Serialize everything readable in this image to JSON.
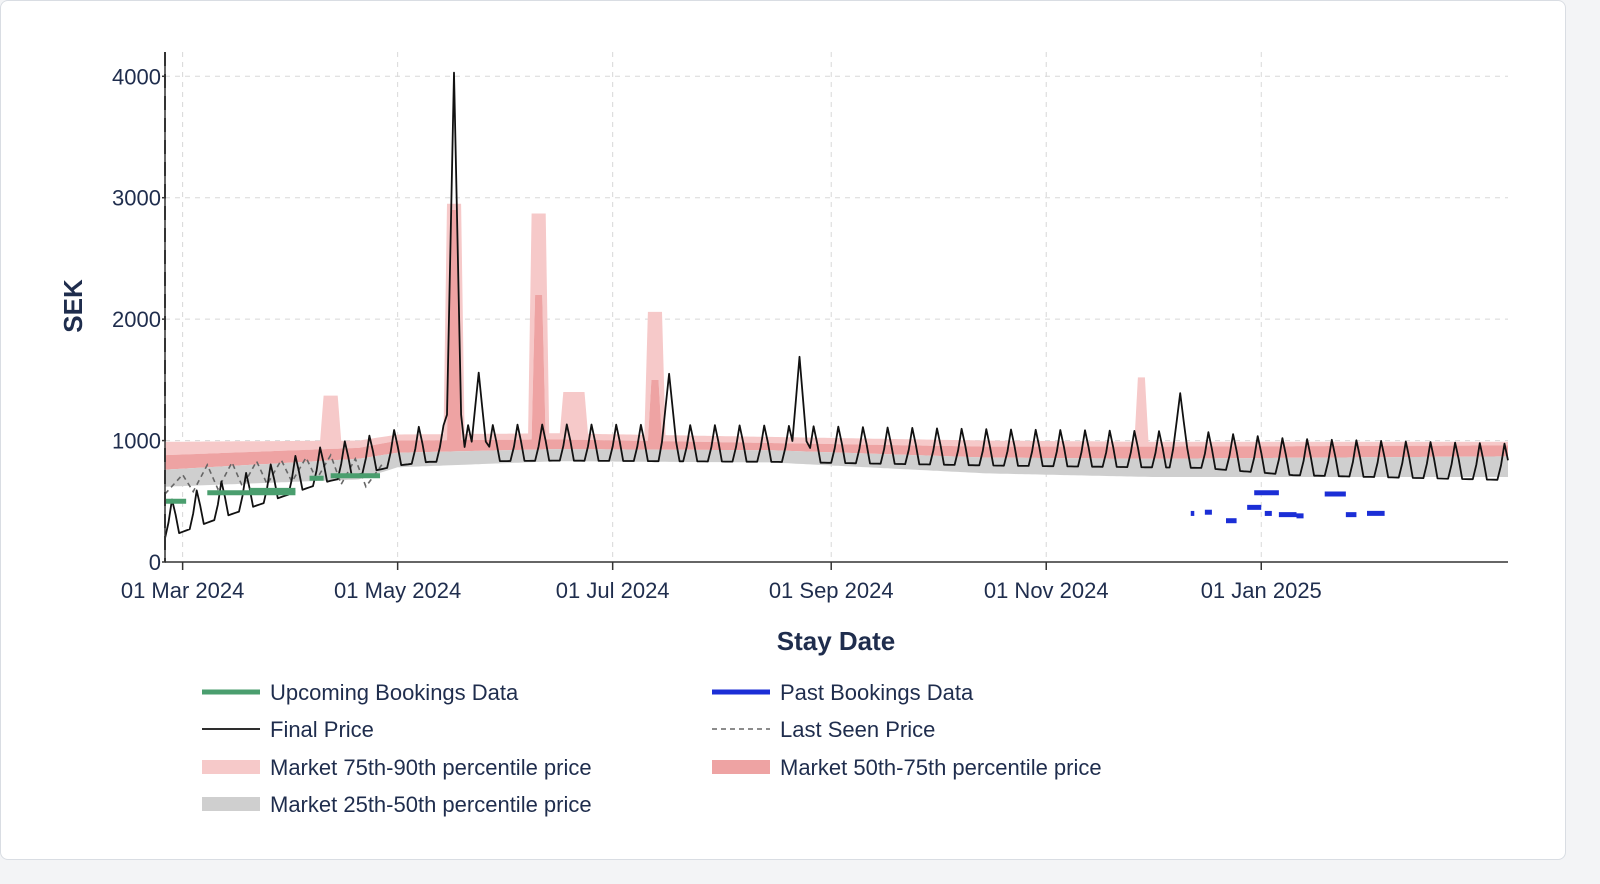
{
  "chart_data": {
    "type": "line",
    "xlabel": "Stay Date",
    "ylabel": "SEK",
    "xlim": [
      "2024-02-25",
      "2025-03-12"
    ],
    "ylim": [
      0,
      4200
    ],
    "grid": true,
    "legend_position": "bottom",
    "x_ticks": [
      {
        "date": "2024-03-01",
        "label": "01 Mar 2024"
      },
      {
        "date": "2024-05-01",
        "label": "01 May 2024"
      },
      {
        "date": "2024-07-01",
        "label": "01 Jul 2024"
      },
      {
        "date": "2024-09-01",
        "label": "01 Sep 2024"
      },
      {
        "date": "2024-11-01",
        "label": "01 Nov 2024"
      },
      {
        "date": "2025-01-01",
        "label": "01 Jan 2025"
      }
    ],
    "y_ticks": [
      0,
      1000,
      2000,
      3000,
      4000
    ],
    "colors": {
      "upcoming": "#4a9e6e",
      "past": "#1b2ed6",
      "final": "#111111",
      "last_seen": "#666666",
      "p75_90": "#f6c9c9",
      "p50_75": "#eea3a3",
      "p25_50": "#cfcfcf",
      "axis_text": "#1f2d4d"
    },
    "legend": [
      {
        "key": "upcoming",
        "label": "Upcoming Bookings Data",
        "style": "thick-line"
      },
      {
        "key": "past",
        "label": "Past Bookings Data",
        "style": "thick-line"
      },
      {
        "key": "final",
        "label": "Final Price",
        "style": "line"
      },
      {
        "key": "last_seen",
        "label": "Last Seen Price",
        "style": "dashed"
      },
      {
        "key": "p75_90",
        "label": "Market 75th-90th percentile price",
        "style": "patch"
      },
      {
        "key": "p50_75",
        "label": "Market 50th-75th percentile price",
        "style": "patch"
      },
      {
        "key": "p25_50",
        "label": "Market 25th-50th percentile price",
        "style": "patch"
      }
    ],
    "final_price": {
      "keypoints": [
        [
          "2024-02-25",
          300
        ],
        [
          "2024-03-10",
          450
        ],
        [
          "2024-03-25",
          600
        ],
        [
          "2024-04-10",
          760
        ],
        [
          "2024-04-25",
          860
        ],
        [
          "2024-05-01",
          900
        ],
        [
          "2024-05-10",
          930
        ],
        [
          "2024-06-15",
          940
        ],
        [
          "2024-08-15",
          930
        ],
        [
          "2024-10-15",
          900
        ],
        [
          "2024-12-15",
          880
        ],
        [
          "2025-01-10",
          820
        ],
        [
          "2025-03-12",
          780
        ]
      ],
      "weekly_amplitude": 300,
      "spikes": [
        {
          "date": "2024-05-17",
          "value": 4030
        },
        {
          "date": "2024-08-23",
          "value": 1690
        },
        {
          "date": "2024-12-09",
          "value": 1390
        },
        {
          "date": "2024-07-17",
          "value": 1550
        },
        {
          "date": "2024-05-24",
          "value": 1560
        }
      ]
    },
    "market_p25": [
      [
        "2024-02-25",
        620
      ],
      [
        "2024-04-20",
        680
      ],
      [
        "2024-05-01",
        780
      ],
      [
        "2024-06-15",
        830
      ],
      [
        "2024-08-15",
        820
      ],
      [
        "2024-10-15",
        730
      ],
      [
        "2024-12-01",
        700
      ],
      [
        "2025-03-12",
        700
      ]
    ],
    "market_p50": [
      [
        "2024-02-25",
        760
      ],
      [
        "2024-04-20",
        850
      ],
      [
        "2024-05-01",
        900
      ],
      [
        "2024-06-15",
        930
      ],
      [
        "2024-08-15",
        920
      ],
      [
        "2024-10-15",
        860
      ],
      [
        "2024-12-01",
        850
      ],
      [
        "2025-03-12",
        870
      ]
    ],
    "market_p75": [
      [
        "2024-02-25",
        880
      ],
      [
        "2024-04-20",
        940
      ],
      [
        "2024-05-01",
        1000
      ],
      [
        "2024-06-15",
        1010
      ],
      [
        "2024-08-15",
        980
      ],
      [
        "2024-10-15",
        950
      ],
      [
        "2024-12-01",
        950
      ],
      [
        "2025-03-12",
        960
      ]
    ],
    "market_p90": [
      [
        "2024-02-25",
        990
      ],
      [
        "2024-04-20",
        1000
      ],
      [
        "2024-05-01",
        1050
      ],
      [
        "2024-06-15",
        1060
      ],
      [
        "2024-08-15",
        1030
      ],
      [
        "2024-10-15",
        1000
      ],
      [
        "2024-12-01",
        990
      ],
      [
        "2025-03-12",
        990
      ]
    ],
    "market_p90_peaks": [
      {
        "date": "2024-04-12",
        "value": 1370,
        "width_days": 5
      },
      {
        "date": "2024-05-17",
        "value": 2950,
        "width_days": 4
      },
      {
        "date": "2024-06-10",
        "value": 2870,
        "width_days": 4
      },
      {
        "date": "2024-06-20",
        "value": 1400,
        "width_days": 7
      },
      {
        "date": "2024-07-13",
        "value": 2060,
        "width_days": 5
      },
      {
        "date": "2024-11-28",
        "value": 1520,
        "width_days": 2
      }
    ],
    "market_p75_peaks": [
      {
        "date": "2024-05-17",
        "value": 2900,
        "width_days": 2
      },
      {
        "date": "2024-06-10",
        "value": 2200,
        "width_days": 2
      },
      {
        "date": "2024-07-13",
        "value": 1500,
        "width_days": 2
      }
    ],
    "last_seen_price": [
      [
        "2024-02-25",
        560
      ],
      [
        "2024-03-01",
        720
      ],
      [
        "2024-03-04",
        580
      ],
      [
        "2024-03-08",
        800
      ],
      [
        "2024-03-11",
        600
      ],
      [
        "2024-03-15",
        820
      ],
      [
        "2024-03-18",
        620
      ],
      [
        "2024-03-22",
        830
      ],
      [
        "2024-03-25",
        640
      ],
      [
        "2024-03-29",
        840
      ],
      [
        "2024-04-01",
        660
      ],
      [
        "2024-04-05",
        860
      ],
      [
        "2024-04-08",
        680
      ],
      [
        "2024-04-12",
        880
      ],
      [
        "2024-04-15",
        640
      ],
      [
        "2024-04-19",
        850
      ],
      [
        "2024-04-22",
        620
      ],
      [
        "2024-04-27",
        820
      ]
    ],
    "upcoming_bookings": [
      {
        "start": "2024-02-25",
        "end": "2024-03-02",
        "value": 500
      },
      {
        "start": "2024-03-08",
        "end": "2024-04-02",
        "value": 570
      },
      {
        "start": "2024-03-20",
        "end": "2024-04-02",
        "value": 590
      },
      {
        "start": "2024-04-06",
        "end": "2024-04-10",
        "value": 690
      },
      {
        "start": "2024-04-12",
        "end": "2024-04-26",
        "value": 710
      }
    ],
    "past_bookings": [
      {
        "start": "2024-12-12",
        "end": "2024-12-13",
        "value": 400
      },
      {
        "start": "2024-12-16",
        "end": "2024-12-18",
        "value": 410
      },
      {
        "start": "2024-12-22",
        "end": "2024-12-25",
        "value": 340
      },
      {
        "start": "2024-12-28",
        "end": "2025-01-01",
        "value": 450
      },
      {
        "start": "2025-01-02",
        "end": "2025-01-04",
        "value": 400
      },
      {
        "start": "2024-12-30",
        "end": "2025-01-06",
        "value": 570
      },
      {
        "start": "2025-01-06",
        "end": "2025-01-11",
        "value": 390
      },
      {
        "start": "2025-01-11",
        "end": "2025-01-13",
        "value": 380
      },
      {
        "start": "2025-01-19",
        "end": "2025-01-25",
        "value": 560
      },
      {
        "start": "2025-01-25",
        "end": "2025-01-28",
        "value": 390
      },
      {
        "start": "2025-01-31",
        "end": "2025-02-05",
        "value": 400
      }
    ]
  }
}
